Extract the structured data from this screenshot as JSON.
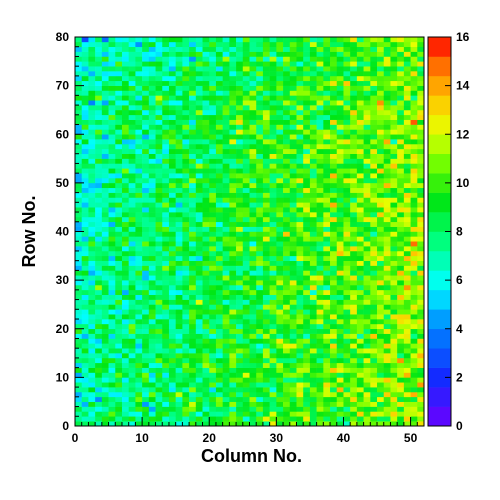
{
  "chart_data": {
    "type": "heatmap",
    "title": "",
    "xlabel": "Column No.",
    "ylabel": "Row No.",
    "xlim": [
      0,
      52
    ],
    "ylim": [
      0,
      80
    ],
    "x_ticks": [
      0,
      10,
      20,
      30,
      40,
      50
    ],
    "y_ticks": [
      0,
      10,
      20,
      30,
      40,
      50,
      60,
      70,
      80
    ],
    "colorbar": {
      "min": 0,
      "max": 16,
      "ticks": [
        0,
        2,
        4,
        6,
        8,
        10,
        12,
        14,
        16
      ],
      "placement": "right"
    },
    "grid": false,
    "value_description_trend": {
      "left_region_typical": 7,
      "right_region_typical": 11,
      "range": [
        0,
        16
      ]
    }
  }
}
